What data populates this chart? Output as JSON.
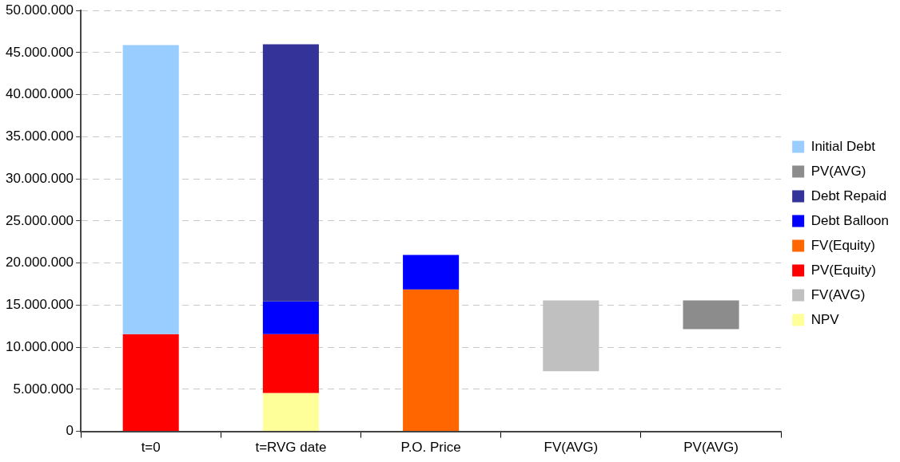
{
  "chart_data": {
    "type": "bar",
    "categories": [
      "t=0",
      "t=RVG date",
      "P.O. Price",
      "FV(AVG)",
      "PV(AVG)"
    ],
    "series": [
      {
        "name": "Initial Debt",
        "color": "#99ccff",
        "values": [
          34350000,
          null,
          null,
          null,
          null
        ],
        "base": [
          11550000,
          null,
          null,
          null,
          null
        ]
      },
      {
        "name": "PV(AVG)",
        "color": "#8c8c8c",
        "values": [
          null,
          null,
          null,
          null,
          3400000
        ],
        "base": [
          null,
          null,
          null,
          null,
          12150000
        ]
      },
      {
        "name": "Debt Repaid",
        "color": "#333399",
        "values": [
          null,
          30550000,
          null,
          null,
          null
        ],
        "base": [
          null,
          15450000,
          null,
          null,
          null
        ]
      },
      {
        "name": "Debt Balloon",
        "color": "#0000ff",
        "values": [
          null,
          3900000,
          4100000,
          null,
          null
        ],
        "base": [
          null,
          11550000,
          16850000,
          null,
          null
        ]
      },
      {
        "name": "FV(Equity)",
        "color": "#ff6600",
        "values": [
          null,
          null,
          16850000,
          null,
          null
        ],
        "base": [
          null,
          null,
          0,
          null,
          null
        ]
      },
      {
        "name": "PV(Equity)",
        "color": "#ff0000",
        "values": [
          11550000,
          7000000,
          null,
          null,
          null
        ],
        "base": [
          0,
          4550000,
          null,
          null,
          null
        ]
      },
      {
        "name": "FV(AVG)",
        "color": "#c0c0c0",
        "values": [
          null,
          null,
          null,
          8400000,
          null
        ],
        "base": [
          null,
          null,
          null,
          7150000,
          null
        ]
      },
      {
        "name": "NPV",
        "color": "#ffff99",
        "values": [
          null,
          4550000,
          null,
          null,
          null
        ],
        "base": [
          null,
          0,
          null,
          null,
          null
        ]
      }
    ],
    "ylim": [
      0,
      50000000
    ],
    "yticks": [
      0,
      {
        "value": 5000000,
        "label": "5.000.000"
      },
      {
        "value": 10000000,
        "label": "10.000.000"
      },
      {
        "value": 15000000,
        "label": "15.000.000"
      },
      {
        "value": 20000000,
        "label": "20.000.000"
      },
      {
        "value": 25000000,
        "label": "25.000.000"
      },
      {
        "value": 30000000,
        "label": "30.000.000"
      },
      {
        "value": 35000000,
        "label": "35.000.000"
      },
      {
        "value": 40000000,
        "label": "40.000.000"
      },
      {
        "value": 45000000,
        "label": "45.000.000"
      },
      {
        "value": 50000000,
        "label": "50.000.000"
      }
    ],
    "grid": "y",
    "legend": "right"
  }
}
